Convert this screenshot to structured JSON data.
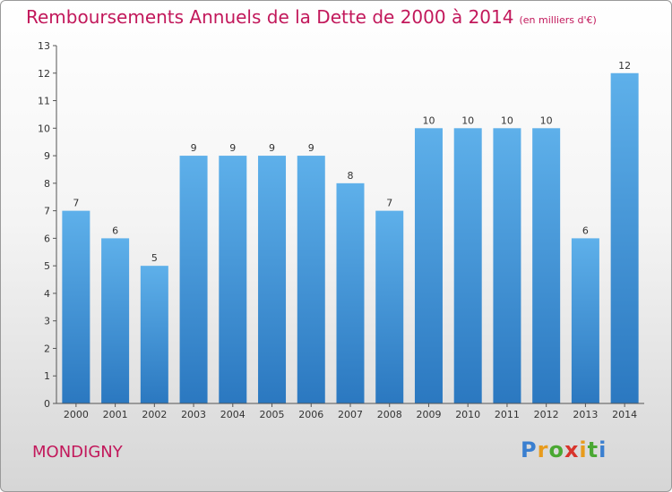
{
  "chart_data": {
    "type": "bar",
    "title": "Remboursements Annuels de la Dette de 2000 à 2014",
    "unit": "(en milliers d'€)",
    "categories": [
      "2000",
      "2001",
      "2002",
      "2003",
      "2004",
      "2005",
      "2006",
      "2007",
      "2008",
      "2009",
      "2010",
      "2011",
      "2012",
      "2013",
      "2014"
    ],
    "values": [
      7,
      6,
      5,
      9,
      9,
      9,
      9,
      8,
      7,
      10,
      10,
      10,
      10,
      6,
      12
    ],
    "ylim": [
      0,
      13
    ],
    "yticks": [
      0,
      1,
      2,
      3,
      4,
      5,
      6,
      7,
      8,
      9,
      10,
      11,
      12,
      13
    ],
    "grid": false,
    "bar_color": "#4a9fe0"
  },
  "footer": {
    "commune": "MONDIGNY",
    "logo_letters": [
      {
        "ch": "P",
        "color": "#3a7fd0"
      },
      {
        "ch": "r",
        "color": "#e89b1c"
      },
      {
        "ch": "o",
        "color": "#4aa832"
      },
      {
        "ch": "x",
        "color": "#d8342c"
      },
      {
        "ch": "i",
        "color": "#e89b1c"
      },
      {
        "ch": "t",
        "color": "#4aa832"
      },
      {
        "ch": "i",
        "color": "#3a7fd0"
      }
    ]
  },
  "colors": {
    "title": "#c2185b",
    "axis": "#555555"
  }
}
